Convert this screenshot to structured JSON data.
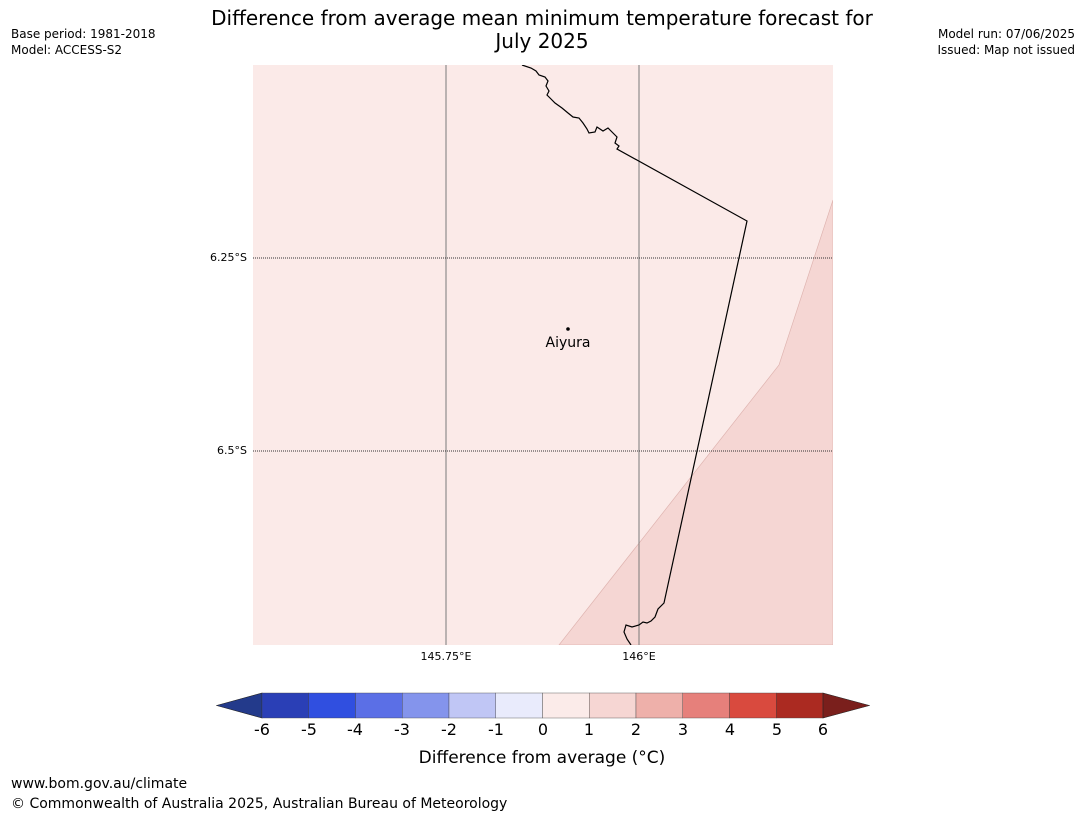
{
  "header": {
    "title_line1": "Difference from average mean minimum temperature forecast for",
    "title_line2": "July 2025",
    "base_period": "Base period: 1981-2018",
    "model": "Model: ACCESS-S2",
    "model_run": "Model run: 07/06/2025",
    "issued": "Issued: Map not issued"
  },
  "map": {
    "lat_labels": [
      "6.25°S",
      "6.5°S"
    ],
    "lon_labels": [
      "145.75°E",
      "146°E"
    ],
    "place": {
      "name": "Aiyura"
    },
    "fill_colors": {
      "band_0_1": "#fbeae8",
      "band_1_2": "#f5d6d3"
    }
  },
  "colorbar": {
    "ticks": [
      "-6",
      "-5",
      "-4",
      "-3",
      "-2",
      "-1",
      "0",
      "1",
      "2",
      "3",
      "4",
      "5",
      "6"
    ],
    "colors": [
      "#233a8b",
      "#2a3fb6",
      "#304fe0",
      "#5b6fe6",
      "#8494ec",
      "#c0c6f5",
      "#e9ebfc",
      "#fbebe9",
      "#f6d6d3",
      "#eeb0aa",
      "#e6807b",
      "#d94a3e",
      "#ab2a21",
      "#7a1f1c"
    ],
    "label": "Difference from average ($^\\circ$C)",
    "label_display": "Difference from average (°C)"
  },
  "footer": {
    "url": "www.bom.gov.au/climate",
    "copyright": "© Commonwealth of Australia 2025, Australian Bureau of Meteorology"
  }
}
